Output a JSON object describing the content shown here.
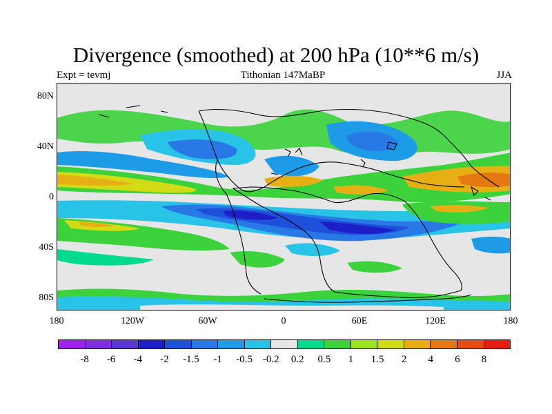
{
  "title": "Divergence (smoothed) at 200 hPa (10**6 m/s)",
  "subtitle_left": "Expt = tevmj",
  "subtitle_center": "Tithonian 147MaBP",
  "subtitle_right": "JJA",
  "map": {
    "projection": "cylindrical equidistant",
    "lon_range": [
      -180,
      180
    ],
    "lat_range": [
      -90,
      90
    ],
    "lat_tick_labels": [
      "80N",
      "40N",
      "0",
      "40S",
      "80S"
    ],
    "lon_tick_labels": [
      "180",
      "120W",
      "60W",
      "0",
      "60E",
      "120E",
      "180"
    ],
    "background_color": "#e6e6e6"
  },
  "colorbar": {
    "colors": [
      "#a020f0",
      "#7f2fe0",
      "#5a37d2",
      "#1e1ec8",
      "#1e50dc",
      "#2878e6",
      "#1e9be6",
      "#28c3e6",
      "#e6e6e6",
      "#00dc8c",
      "#3cd23c",
      "#9be61e",
      "#d2dc14",
      "#e6af14",
      "#e67814",
      "#e64b14",
      "#e61e14"
    ],
    "labels": [
      "-8",
      "-6",
      "-4",
      "-2",
      "-1.5",
      "-1",
      "-0.5",
      "-0.2",
      "0.2",
      "0.5",
      "1",
      "1.5",
      "2",
      "4",
      "6",
      "8"
    ]
  }
}
